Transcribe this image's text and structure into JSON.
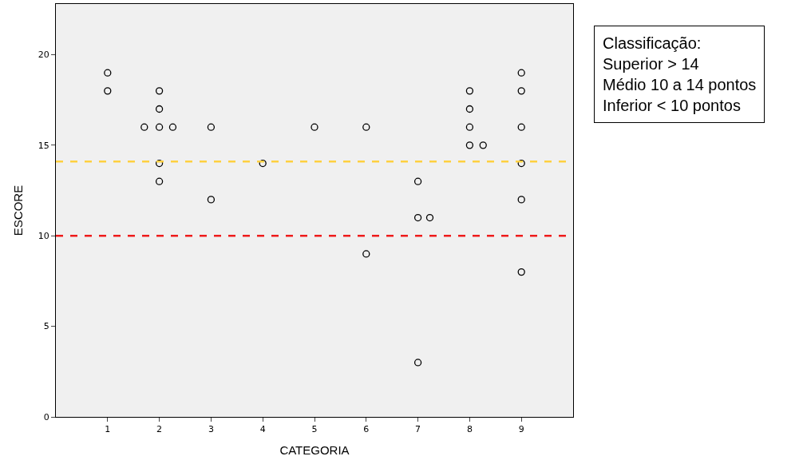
{
  "chart_data": {
    "type": "scatter",
    "xlabel": "CATEGORIA",
    "ylabel": "ESCORE",
    "series": [
      {
        "color": "#000000",
        "x": [
          1,
          1,
          2,
          2,
          2,
          2,
          2,
          1.71,
          2.26,
          3,
          3,
          4,
          5,
          6,
          6,
          7,
          7,
          7,
          7.23,
          8,
          8,
          8,
          8,
          8.26,
          9,
          9,
          9,
          9,
          9,
          9
        ],
        "values": [
          19,
          18,
          18,
          17,
          16,
          14,
          13,
          16,
          16,
          16,
          12,
          14,
          16,
          16,
          9,
          13,
          11,
          3,
          11,
          18,
          17,
          16,
          15,
          15,
          19,
          18,
          16,
          14,
          12,
          8
        ]
      }
    ],
    "xlim": [
      0,
      10
    ],
    "xticks": [
      1,
      2,
      3,
      4,
      5,
      6,
      7,
      8,
      9
    ],
    "ylim": [
      0,
      22.8
    ],
    "yticks": [
      0,
      5,
      10,
      15,
      20
    ],
    "marker": "circle",
    "grid": false,
    "ref_lines": [
      {
        "axis": "y",
        "value": 14.1,
        "color": "#ffd040",
        "line_style": "dashed"
      },
      {
        "axis": "y",
        "value": 10,
        "color": "#ee1c1c",
        "line_style": "dashed"
      }
    ],
    "annotations": [
      "Classificação:\nSuperior > 14\nMédio 10 a 14 pontos\nInferior < 10 pontos"
    ]
  }
}
